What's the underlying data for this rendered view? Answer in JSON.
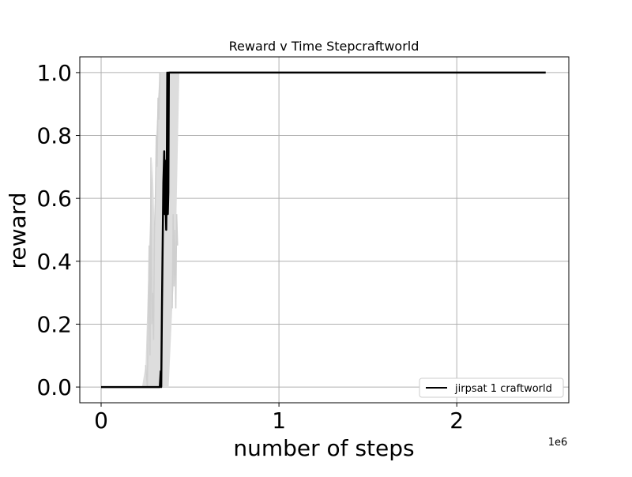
{
  "chart_data": {
    "type": "line",
    "title": "Reward v Time Stepcraftworld",
    "xlabel": "number of steps",
    "ylabel": "reward",
    "x_offset_label": "1e6",
    "x_scale": 1000000,
    "xlim": [
      -120000,
      2630000
    ],
    "ylim": [
      -0.05,
      1.05
    ],
    "xticks": [
      0,
      1000000,
      2000000
    ],
    "xtick_labels": [
      "0",
      "1",
      "2"
    ],
    "yticks": [
      0.0,
      0.2,
      0.4,
      0.6,
      0.8,
      1.0
    ],
    "ytick_labels": [
      "0.0",
      "0.2",
      "0.4",
      "0.6",
      "0.8",
      "1.0"
    ],
    "grid": true,
    "legend_position": "lower-right",
    "series": [
      {
        "name": "jirpsat 1 craftworld",
        "color": "#000000",
        "x": [
          0,
          330000,
          335000,
          338000,
          342000,
          346000,
          350000,
          355000,
          358000,
          360000,
          363000,
          366000,
          369000,
          372000,
          375000,
          378000,
          381000,
          384000,
          387000,
          390000,
          2500000
        ],
        "y": [
          0.0,
          0.0,
          0.05,
          0.0,
          0.25,
          0.45,
          0.65,
          0.75,
          0.55,
          0.72,
          0.6,
          0.5,
          0.65,
          1.0,
          0.55,
          0.62,
          1.0,
          1.0,
          1.0,
          1.0,
          1.0
        ]
      }
    ],
    "band": {
      "color": "#dddddd",
      "x": [
        0,
        230000,
        250000,
        270000,
        290000,
        300000,
        310000,
        320000,
        330000,
        340000,
        350000,
        360000,
        370000,
        380000,
        400000,
        420000,
        440000,
        460000,
        2500000
      ],
      "lower": [
        0.0,
        0.0,
        0.0,
        0.0,
        0.0,
        0.0,
        0.0,
        0.0,
        0.0,
        0.0,
        0.0,
        0.0,
        0.0,
        0.0,
        0.25,
        0.45,
        1.0,
        1.0,
        1.0
      ],
      "upper": [
        0.0,
        0.0,
        0.07,
        0.45,
        0.73,
        0.5,
        0.8,
        0.92,
        1.0,
        1.0,
        1.0,
        1.0,
        1.0,
        1.0,
        1.0,
        1.0,
        1.0,
        1.0,
        1.0
      ]
    },
    "variance_traces": [
      {
        "x": [
          250000,
          260000,
          270000,
          275000,
          280000,
          285000,
          290000,
          295000,
          300000,
          305000,
          310000,
          315000,
          320000,
          325000,
          330000
        ],
        "y": [
          0.07,
          0.0,
          0.45,
          0.1,
          0.73,
          0.2,
          0.3,
          0.15,
          0.5,
          0.6,
          0.8,
          0.7,
          0.92,
          0.85,
          1.0
        ]
      },
      {
        "x": [
          400000,
          405000,
          410000,
          415000,
          420000,
          425000,
          430000
        ],
        "y": [
          0.25,
          0.55,
          0.32,
          0.5,
          0.25,
          0.55,
          0.45
        ]
      }
    ]
  }
}
